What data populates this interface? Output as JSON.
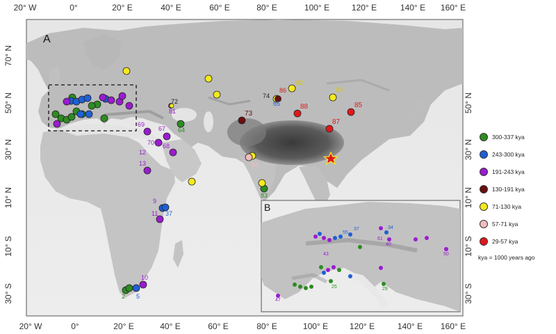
{
  "axes": {
    "lon_ticks": [
      "20° W",
      "0°",
      "20° E",
      "40° E",
      "60° E",
      "80° E",
      "100° E",
      "120° E",
      "140° E",
      "160° E"
    ],
    "lat_ticks_left": [
      "70° N",
      "50° N",
      "30° N",
      "10° N",
      "10° S",
      "30° S"
    ],
    "inset_lat_ticks": [
      "50° N",
      "30° N",
      "10° N",
      "10° S",
      "30° S"
    ]
  },
  "panels": {
    "main": "A",
    "inset": "B"
  },
  "legend": {
    "items": [
      {
        "label": "300-337 kya",
        "color": "#2e8b22"
      },
      {
        "label": "243-300 kya",
        "color": "#1f5fd6"
      },
      {
        "label": "191-243 kya",
        "color": "#9a1ccf"
      },
      {
        "label": "130-191 kya",
        "color": "#6b0e0e"
      },
      {
        "label": "71-130 kya",
        "color": "#f5ea1e"
      },
      {
        "label": "57-71 kya",
        "color": "#f2bcbc"
      },
      {
        "label": "29-57 kya",
        "color": "#e0181b"
      }
    ],
    "note": "kya = 1000 years ago"
  },
  "main_labels": [
    {
      "text": "2",
      "color": "#2e8b22"
    },
    {
      "text": "5",
      "color": "#1f5fd6"
    },
    {
      "text": "10",
      "color": "#9a1ccf"
    },
    {
      "text": "11",
      "color": "#9a1ccf"
    },
    {
      "text": "9",
      "color": "#9a1ccf"
    },
    {
      "text": "37",
      "color": "#1f5fd6"
    },
    {
      "text": "12",
      "color": "#9a1ccf"
    },
    {
      "text": "13",
      "color": "#9a1ccf"
    },
    {
      "text": "69",
      "color": "#9a1ccf"
    },
    {
      "text": "70",
      "color": "#9a1ccf"
    },
    {
      "text": "67",
      "color": "#9a1ccf"
    },
    {
      "text": "68",
      "color": "#9a1ccf"
    },
    {
      "text": "72",
      "color": "#222222"
    },
    {
      "text": "81",
      "color": "#9a1ccf"
    },
    {
      "text": "64",
      "color": "#2e8b22"
    },
    {
      "text": "74",
      "color": "#222222"
    },
    {
      "text": "86",
      "color": "#e0181b"
    },
    {
      "text": "65",
      "color": "#1f5fd6"
    },
    {
      "text": "73",
      "color": "#6b0e0e"
    },
    {
      "text": "88",
      "color": "#e0181b"
    },
    {
      "text": "85",
      "color": "#e0181b"
    },
    {
      "text": "87",
      "color": "#e0181b"
    },
    {
      "text": "84",
      "color": "#f2bcbc"
    },
    {
      "text": "83",
      "color": "#2e8b22"
    },
    {
      "text": "80",
      "color": "#f5ea1e"
    },
    {
      "text": "82",
      "color": "#f5ea1e"
    }
  ],
  "inset_labels": [
    {
      "text": "47",
      "color": "#9a1ccf"
    },
    {
      "text": "29",
      "color": "#2e8b22"
    },
    {
      "text": "34",
      "color": "#1f5fd6"
    },
    {
      "text": "37",
      "color": "#1f5fd6"
    },
    {
      "text": "55",
      "color": "#1f5fd6"
    },
    {
      "text": "50",
      "color": "#9a1ccf"
    },
    {
      "text": "40",
      "color": "#9a1ccf"
    },
    {
      "text": "61",
      "color": "#9a1ccf"
    },
    {
      "text": "43",
      "color": "#9a1ccf"
    },
    {
      "text": "25",
      "color": "#2e8b22"
    }
  ]
}
